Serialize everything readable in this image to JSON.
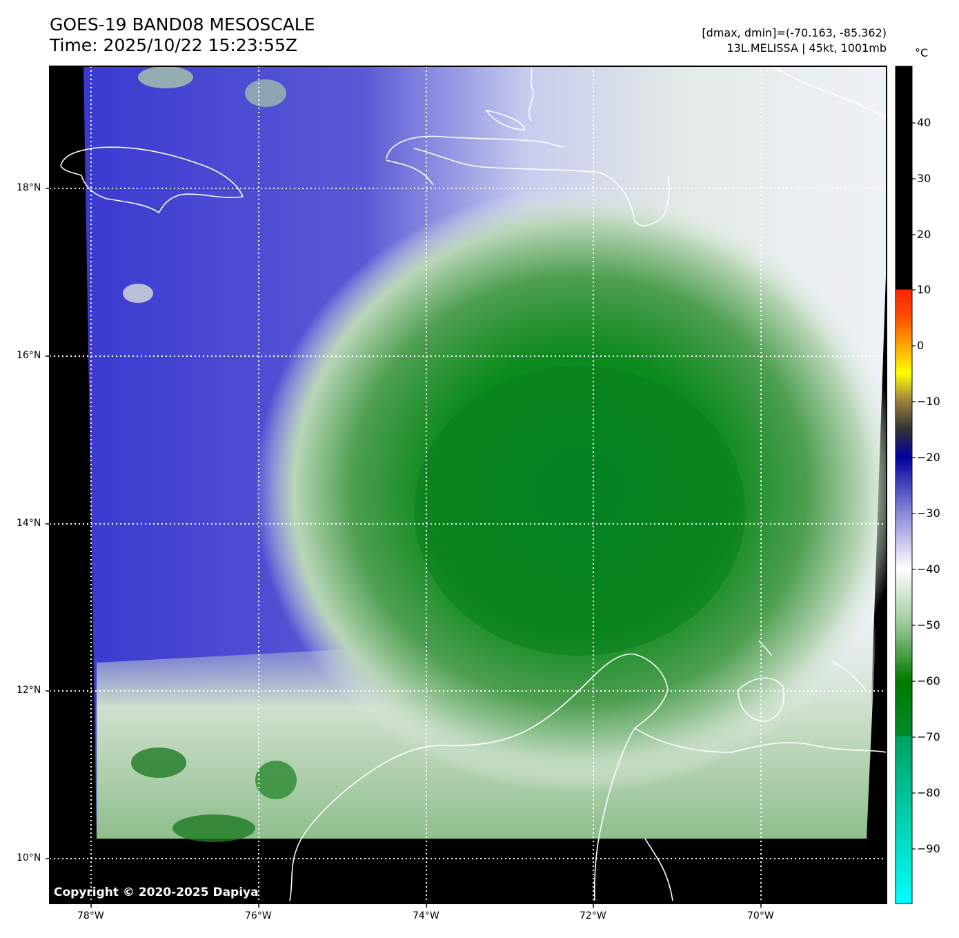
{
  "header": {
    "title_line1": "GOES-19 BAND08 MESOSCALE",
    "title_line2": "Time: 2025/10/22 15:23:55Z",
    "info_line1": "[dmax, dmin]=(-70.163, -85.362)",
    "info_line2": "13L.MELISSA | 45kt, 1001mb"
  },
  "map": {
    "lon_labels": [
      "78°W",
      "76°W",
      "74°W",
      "72°W",
      "70°W"
    ],
    "lat_labels": [
      "18°N",
      "16°N",
      "14°N",
      "12°N",
      "10°N"
    ],
    "lon_range": [
      -78.5,
      -68.5
    ],
    "lat_range": [
      9.5,
      19.5
    ],
    "gridlines": true,
    "copyright": "Copyright © 2020-2025 Dapiya"
  },
  "colorbar": {
    "unit": "°C",
    "ticks": [
      "40",
      "30",
      "20",
      "10",
      "0",
      "−10",
      "−20",
      "−30",
      "−40",
      "−50",
      "−60",
      "−70",
      "−80",
      "−90"
    ],
    "range": [
      -100,
      50
    ],
    "colors": {
      "warm": "#000000",
      "zero": "#ff2200",
      "minus10": "#ffa500",
      "minus15": "#ffff00",
      "minus25": "#333333",
      "minus30": "#0000a0",
      "minus50": "#ffffff",
      "minus70": "#007a00",
      "minus100": "#00ffff"
    }
  }
}
